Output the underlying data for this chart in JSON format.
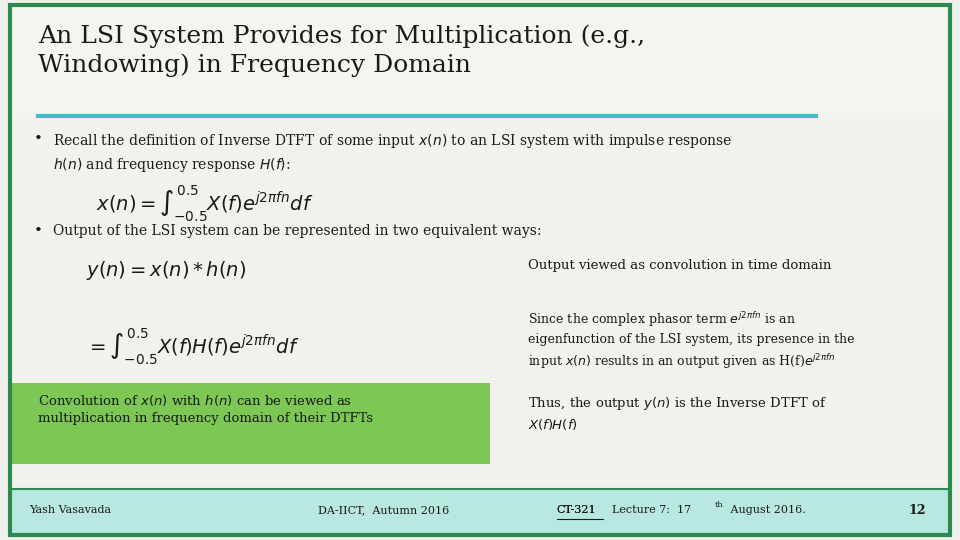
{
  "slide_bg": "#f0f0ec",
  "border_color": "#2d8a4e",
  "title": "An LSI System Provides for Multiplication (e.g.,\nWindowing) in Frequency Domain",
  "title_color": "#1a1a1a",
  "title_underline_color": "#4ab8c8",
  "title_fontsize": 18,
  "bullet1_text": "Recall the definition of Inverse DTFT of some input $x(n)$ to an LSI system with impulse response\n$h(n)$ and frequency response $H(f)$:",
  "bullet2_text": "Output of the LSI system can be represented in two equivalent ways:",
  "eq1": "$x(n) = \\int_{-0.5}^{0.5} X(f)e^{j2\\pi f n}df$",
  "eq2a": "$y(n) = x(n) * h(n)$",
  "eq2b": "$= \\int_{-0.5}^{0.5} X(f)H(f)e^{j2\\pi f n}df$",
  "side_note1": "Output viewed as convolution in time domain",
  "side_note2": "Since the complex phasor term $e^{j2\\pi fn}$ is an\neigenfunction of the LSI system, its presence in the\ninput $x(n)$ results in an output given as H(f)$e^{j2\\pi fn}$",
  "green_box_text": "Convolution of $x(n)$ with $h(n)$ can be viewed as\nmultiplication in frequency domain of their DTFTs",
  "green_box_color": "#7dc855",
  "side_note3": "Thus, the output $y(n)$ is the Inverse DTFT of\n$X(f)H(f)$",
  "footer_left": "Yash Vasavada",
  "footer_center": "DA-IICT,  Autumn 2016",
  "footer_ct": "CT-321",
  "footer_lecture": "  Lecture 7:  17",
  "footer_th": "th",
  "footer_date": " August 2016.",
  "footer_page": "12",
  "footer_bg": "#b8e8e0",
  "body_fontsize": 10,
  "title_area_bg": "#f5f5f0",
  "body_area_bg": "#f2f2ed"
}
